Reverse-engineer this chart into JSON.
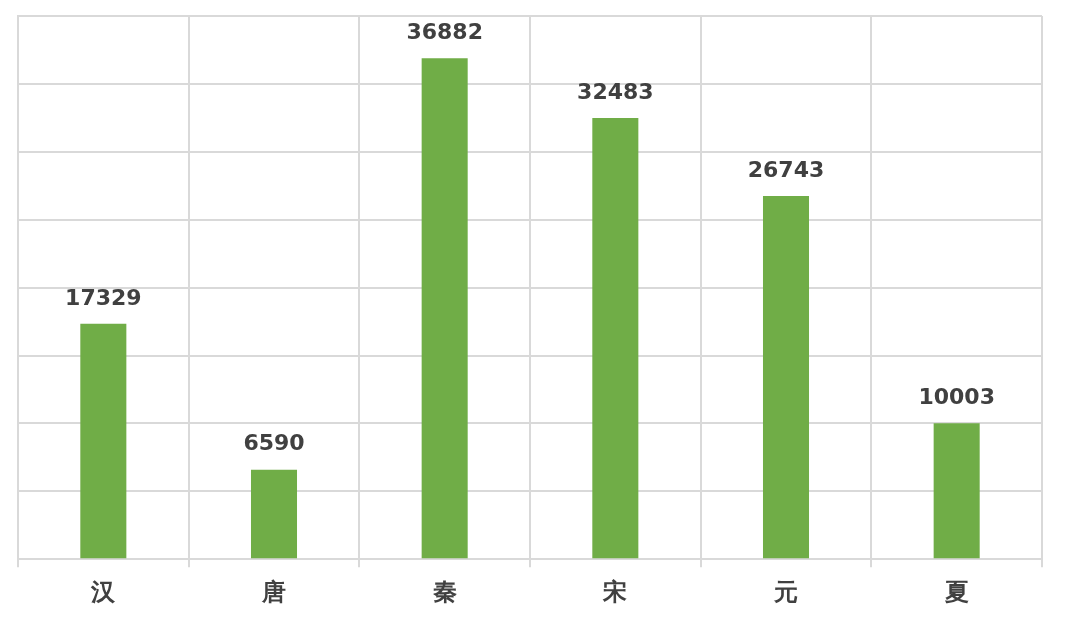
{
  "chart_data": {
    "type": "bar",
    "categories": [
      "汉",
      "唐",
      "秦",
      "宋",
      "元",
      "夏"
    ],
    "values": [
      17329,
      6590,
      36882,
      32483,
      26743,
      10003
    ],
    "color": "#70ad47",
    "ylim": [
      0,
      40000
    ],
    "yticks": [
      {
        "value": 0,
        "label": null
      },
      {
        "value": 5000,
        "label": null
      },
      {
        "value": 10000,
        "label": null
      },
      {
        "value": 15000,
        "label": null
      },
      {
        "value": 20000,
        "label": null
      },
      {
        "value": 25000,
        "label": null
      },
      {
        "value": 30000,
        "label": null
      },
      {
        "value": 35000,
        "label": null
      },
      {
        "value": 40000,
        "label": null
      }
    ],
    "grid": true,
    "data_labels": true,
    "tick_labels": "x",
    "legend": false
  }
}
